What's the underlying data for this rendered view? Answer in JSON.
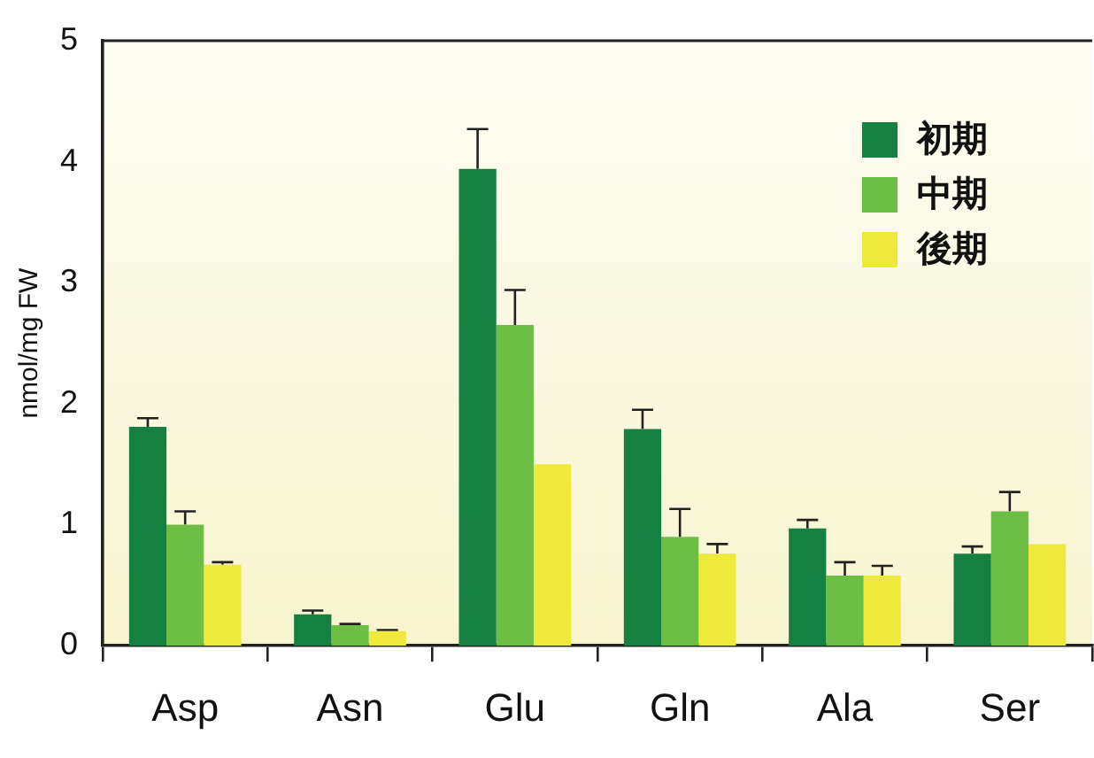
{
  "chart_data": {
    "type": "bar",
    "ylabel": "nmol/mg FW",
    "categories": [
      "Asp",
      "Asn",
      "Glu",
      "Gln",
      "Ala",
      "Ser"
    ],
    "series": [
      {
        "name": "初期",
        "color": "#168040",
        "values": [
          1.81,
          0.26,
          3.94,
          1.79,
          0.97,
          0.76
        ],
        "errors": [
          [
            1.81,
            1.88
          ],
          [
            0.26,
            0.29
          ],
          [
            3.94,
            4.27
          ],
          [
            1.79,
            1.95
          ],
          [
            0.97,
            1.04
          ],
          [
            0.76,
            0.82
          ]
        ]
      },
      {
        "name": "中期",
        "color": "#6cbe45",
        "values": [
          1.0,
          0.17,
          2.65,
          0.9,
          0.58,
          1.11
        ],
        "errors": [
          [
            1.0,
            1.11
          ],
          [
            0.17,
            0.18
          ],
          [
            2.65,
            2.94
          ],
          [
            0.9,
            1.13
          ],
          [
            0.58,
            0.69
          ],
          [
            1.11,
            1.27
          ]
        ]
      },
      {
        "name": "後期",
        "color": "#eeea3c",
        "values": [
          0.67,
          0.12,
          1.5,
          0.76,
          0.58,
          0.84
        ],
        "errors": [
          [
            0.67,
            0.69
          ],
          [
            0.12,
            0.13
          ],
          null,
          [
            0.76,
            0.84
          ],
          [
            0.58,
            0.66
          ],
          null
        ]
      }
    ],
    "ylim": [
      0,
      5
    ],
    "yticks": [
      0,
      1,
      2,
      3,
      4,
      5
    ],
    "grid": false,
    "legend": "top right"
  }
}
